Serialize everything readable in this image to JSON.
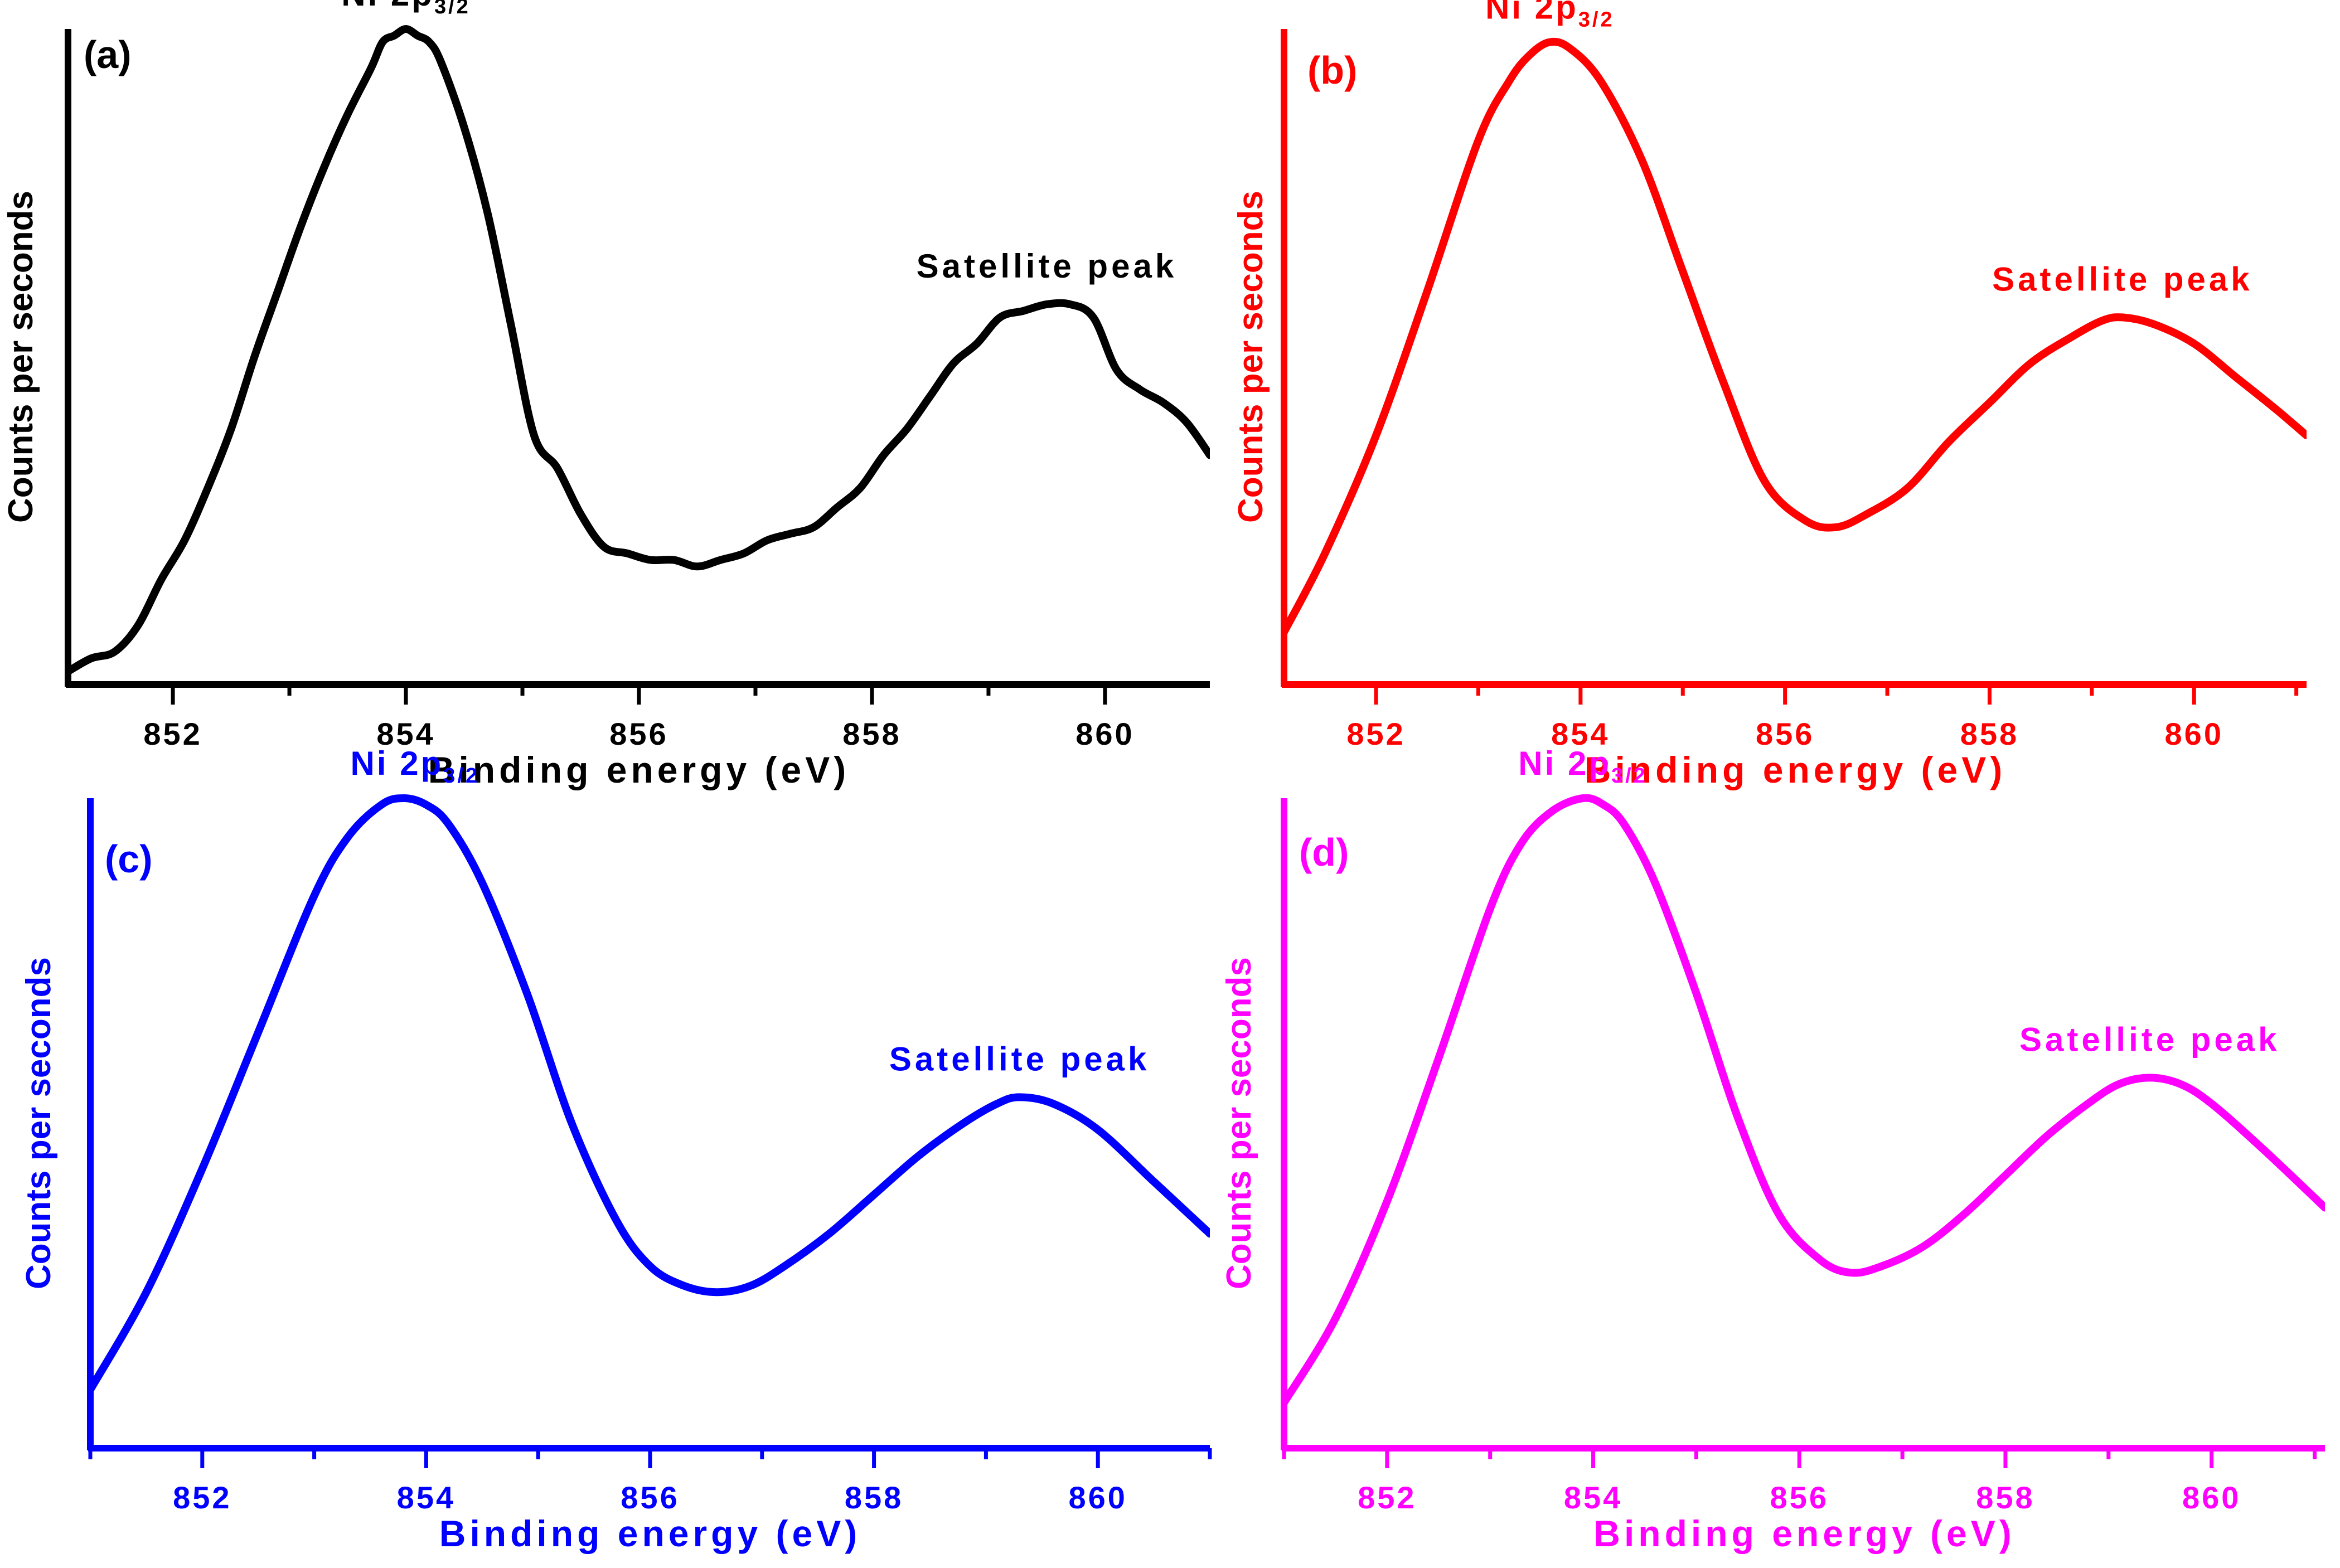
{
  "chart_data": [
    {
      "type": "line",
      "panel_label": "(a)",
      "color": "#000000",
      "title": "",
      "xlabel": "Binding energy (eV)",
      "ylabel": "Counts per seconds",
      "xlim": [
        851.1,
        860.9
      ],
      "ylim": [
        0,
        1
      ],
      "xticks": [
        "852",
        "854",
        "856",
        "858",
        "860"
      ],
      "grid": false,
      "annotations": {
        "main_peak": {
          "prefix": "Ni 2p",
          "subscript": "3/2",
          "x": 854.0
        },
        "satellite": {
          "text": "Satellite peak",
          "x": 859.5
        }
      },
      "series": [
        {
          "name": "Ni 2p spectrum (a)",
          "x": [
            851.1,
            851.3,
            851.5,
            851.7,
            851.9,
            852.1,
            852.3,
            852.5,
            852.7,
            852.9,
            853.1,
            853.3,
            853.5,
            853.7,
            853.8,
            853.9,
            854.0,
            854.1,
            854.2,
            854.3,
            854.5,
            854.7,
            854.9,
            855.1,
            855.3,
            855.5,
            855.7,
            855.9,
            856.1,
            856.3,
            856.5,
            856.7,
            856.9,
            857.1,
            857.3,
            857.5,
            857.7,
            857.9,
            858.1,
            858.3,
            858.5,
            858.7,
            858.9,
            859.1,
            859.3,
            859.5,
            859.7,
            859.9,
            860.1,
            860.3,
            860.5,
            860.7,
            860.9
          ],
          "y": [
            0.02,
            0.04,
            0.05,
            0.09,
            0.16,
            0.22,
            0.3,
            0.39,
            0.5,
            0.6,
            0.7,
            0.79,
            0.87,
            0.94,
            0.98,
            0.99,
            1.0,
            0.99,
            0.98,
            0.95,
            0.85,
            0.72,
            0.55,
            0.38,
            0.33,
            0.26,
            0.21,
            0.2,
            0.19,
            0.19,
            0.18,
            0.19,
            0.2,
            0.22,
            0.23,
            0.24,
            0.27,
            0.3,
            0.35,
            0.39,
            0.44,
            0.49,
            0.52,
            0.56,
            0.57,
            0.58,
            0.58,
            0.56,
            0.48,
            0.45,
            0.43,
            0.4,
            0.35
          ]
        }
      ]
    },
    {
      "type": "line",
      "panel_label": "(b)",
      "color": "#ff0000",
      "title": "",
      "xlabel": "Binding energy (eV)",
      "ylabel": "Counts per seconds",
      "xlim": [
        851.1,
        861.1
      ],
      "ylim": [
        0,
        1
      ],
      "xticks": [
        "852",
        "854",
        "856",
        "858",
        "860"
      ],
      "grid": false,
      "annotations": {
        "main_peak": {
          "prefix": "Ni 2p",
          "subscript": "3/2",
          "x": 853.7
        },
        "satellite": {
          "text": "Satellite peak",
          "x": 859.3
        }
      },
      "series": [
        {
          "name": "Ni 2p spectrum (b)",
          "x": [
            851.1,
            851.5,
            852.0,
            852.5,
            853.0,
            853.3,
            853.5,
            853.7,
            853.9,
            854.2,
            854.6,
            855.0,
            855.4,
            855.8,
            856.2,
            856.5,
            856.8,
            857.2,
            857.6,
            858.0,
            858.4,
            858.8,
            859.1,
            859.3,
            859.6,
            860.0,
            860.4,
            860.8,
            861.1
          ],
          "y": [
            0.08,
            0.2,
            0.38,
            0.6,
            0.83,
            0.92,
            0.96,
            0.98,
            0.97,
            0.92,
            0.8,
            0.63,
            0.46,
            0.31,
            0.25,
            0.24,
            0.26,
            0.3,
            0.37,
            0.43,
            0.49,
            0.53,
            0.555,
            0.56,
            0.55,
            0.52,
            0.47,
            0.42,
            0.38
          ]
        }
      ]
    },
    {
      "type": "line",
      "panel_label": "(c)",
      "color": "#0000ff",
      "title": "",
      "xlabel": "Binding energy (eV)",
      "ylabel": "Counts per seconds",
      "xlim": [
        851.0,
        861.0
      ],
      "ylim": [
        0,
        1
      ],
      "xticks": [
        "852",
        "854",
        "856",
        "858",
        "860"
      ],
      "grid": false,
      "annotations": {
        "main_peak": {
          "prefix": "Ni 2p",
          "subscript": "3/2",
          "x": 853.9
        },
        "satellite": {
          "text": "Satellite peak",
          "x": 859.3
        }
      },
      "series": [
        {
          "name": "Ni 2p spectrum (c)",
          "x": [
            851.0,
            851.5,
            852.0,
            852.5,
            853.0,
            853.3,
            853.6,
            853.8,
            854.0,
            854.2,
            854.5,
            854.9,
            855.3,
            855.7,
            856.0,
            856.3,
            856.6,
            856.9,
            857.2,
            857.6,
            858.0,
            858.4,
            858.8,
            859.1,
            859.3,
            859.6,
            860.0,
            860.5,
            861.0
          ],
          "y": [
            0.09,
            0.24,
            0.43,
            0.64,
            0.85,
            0.94,
            0.99,
            1.0,
            0.99,
            0.96,
            0.87,
            0.7,
            0.5,
            0.35,
            0.28,
            0.25,
            0.24,
            0.25,
            0.28,
            0.33,
            0.39,
            0.45,
            0.5,
            0.53,
            0.54,
            0.53,
            0.49,
            0.41,
            0.33
          ]
        }
      ]
    },
    {
      "type": "line",
      "panel_label": "(d)",
      "color": "#ff00ff",
      "title": "",
      "xlabel": "Binding energy (eV)",
      "ylabel": "Counts per seconds",
      "xlim": [
        851.0,
        861.1
      ],
      "ylim": [
        0,
        1
      ],
      "xticks": [
        "852",
        "854",
        "856",
        "858",
        "860"
      ],
      "grid": false,
      "annotations": {
        "main_peak": {
          "prefix": "Ni 2p",
          "subscript": "3/2",
          "x": 853.9
        },
        "satellite": {
          "text": "Satellite peak",
          "x": 859.4
        }
      },
      "series": [
        {
          "name": "Ni 2p spectrum (d)",
          "x": [
            851.0,
            851.5,
            852.0,
            852.5,
            853.0,
            853.3,
            853.6,
            853.9,
            854.1,
            854.3,
            854.6,
            855.0,
            855.4,
            855.8,
            856.2,
            856.5,
            856.8,
            857.2,
            857.6,
            858.0,
            858.4,
            858.8,
            859.1,
            859.4,
            859.7,
            860.0,
            860.5,
            861.1
          ],
          "y": [
            0.07,
            0.2,
            0.38,
            0.6,
            0.83,
            0.93,
            0.98,
            1.0,
            0.99,
            0.96,
            0.87,
            0.7,
            0.51,
            0.36,
            0.29,
            0.27,
            0.28,
            0.31,
            0.36,
            0.42,
            0.48,
            0.53,
            0.56,
            0.57,
            0.56,
            0.53,
            0.46,
            0.37
          ]
        }
      ]
    }
  ]
}
